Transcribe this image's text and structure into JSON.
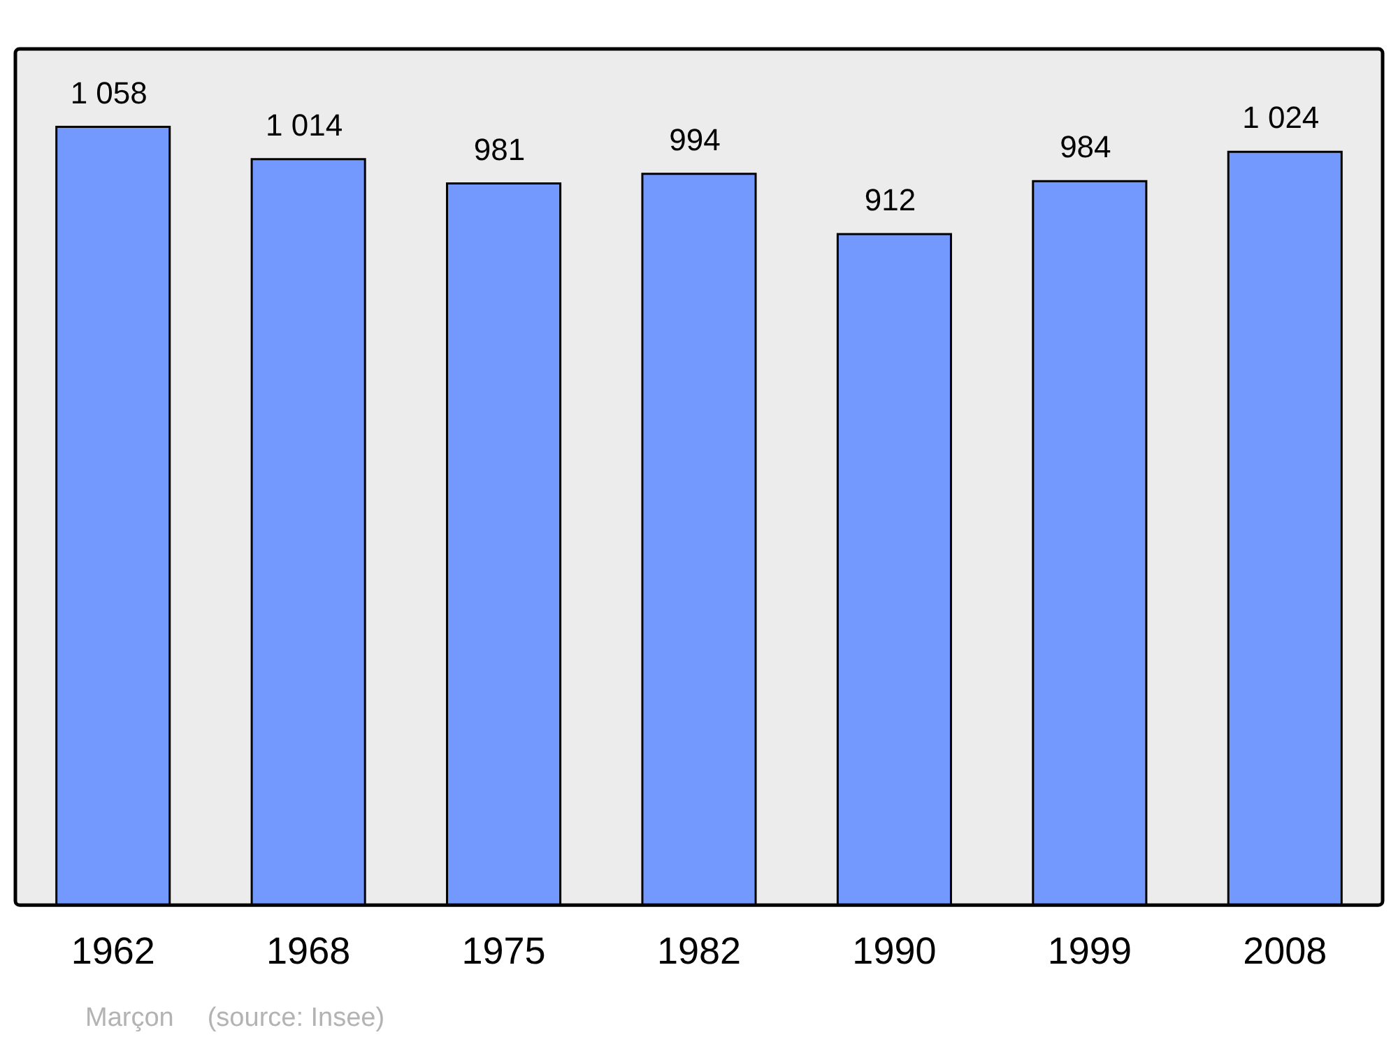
{
  "chart_data": {
    "type": "bar",
    "categories": [
      "1962",
      "1968",
      "1975",
      "1982",
      "1990",
      "1999",
      "2008"
    ],
    "values": [
      1058,
      1014,
      981,
      994,
      912,
      984,
      1024
    ],
    "value_labels": [
      "1 058",
      "1 014",
      "981",
      "994",
      "912",
      "984",
      "1 024"
    ],
    "color": "#7399ff",
    "grid": false,
    "legend": false,
    "annotations": [
      "Marçon",
      "(source: Insee)"
    ]
  }
}
